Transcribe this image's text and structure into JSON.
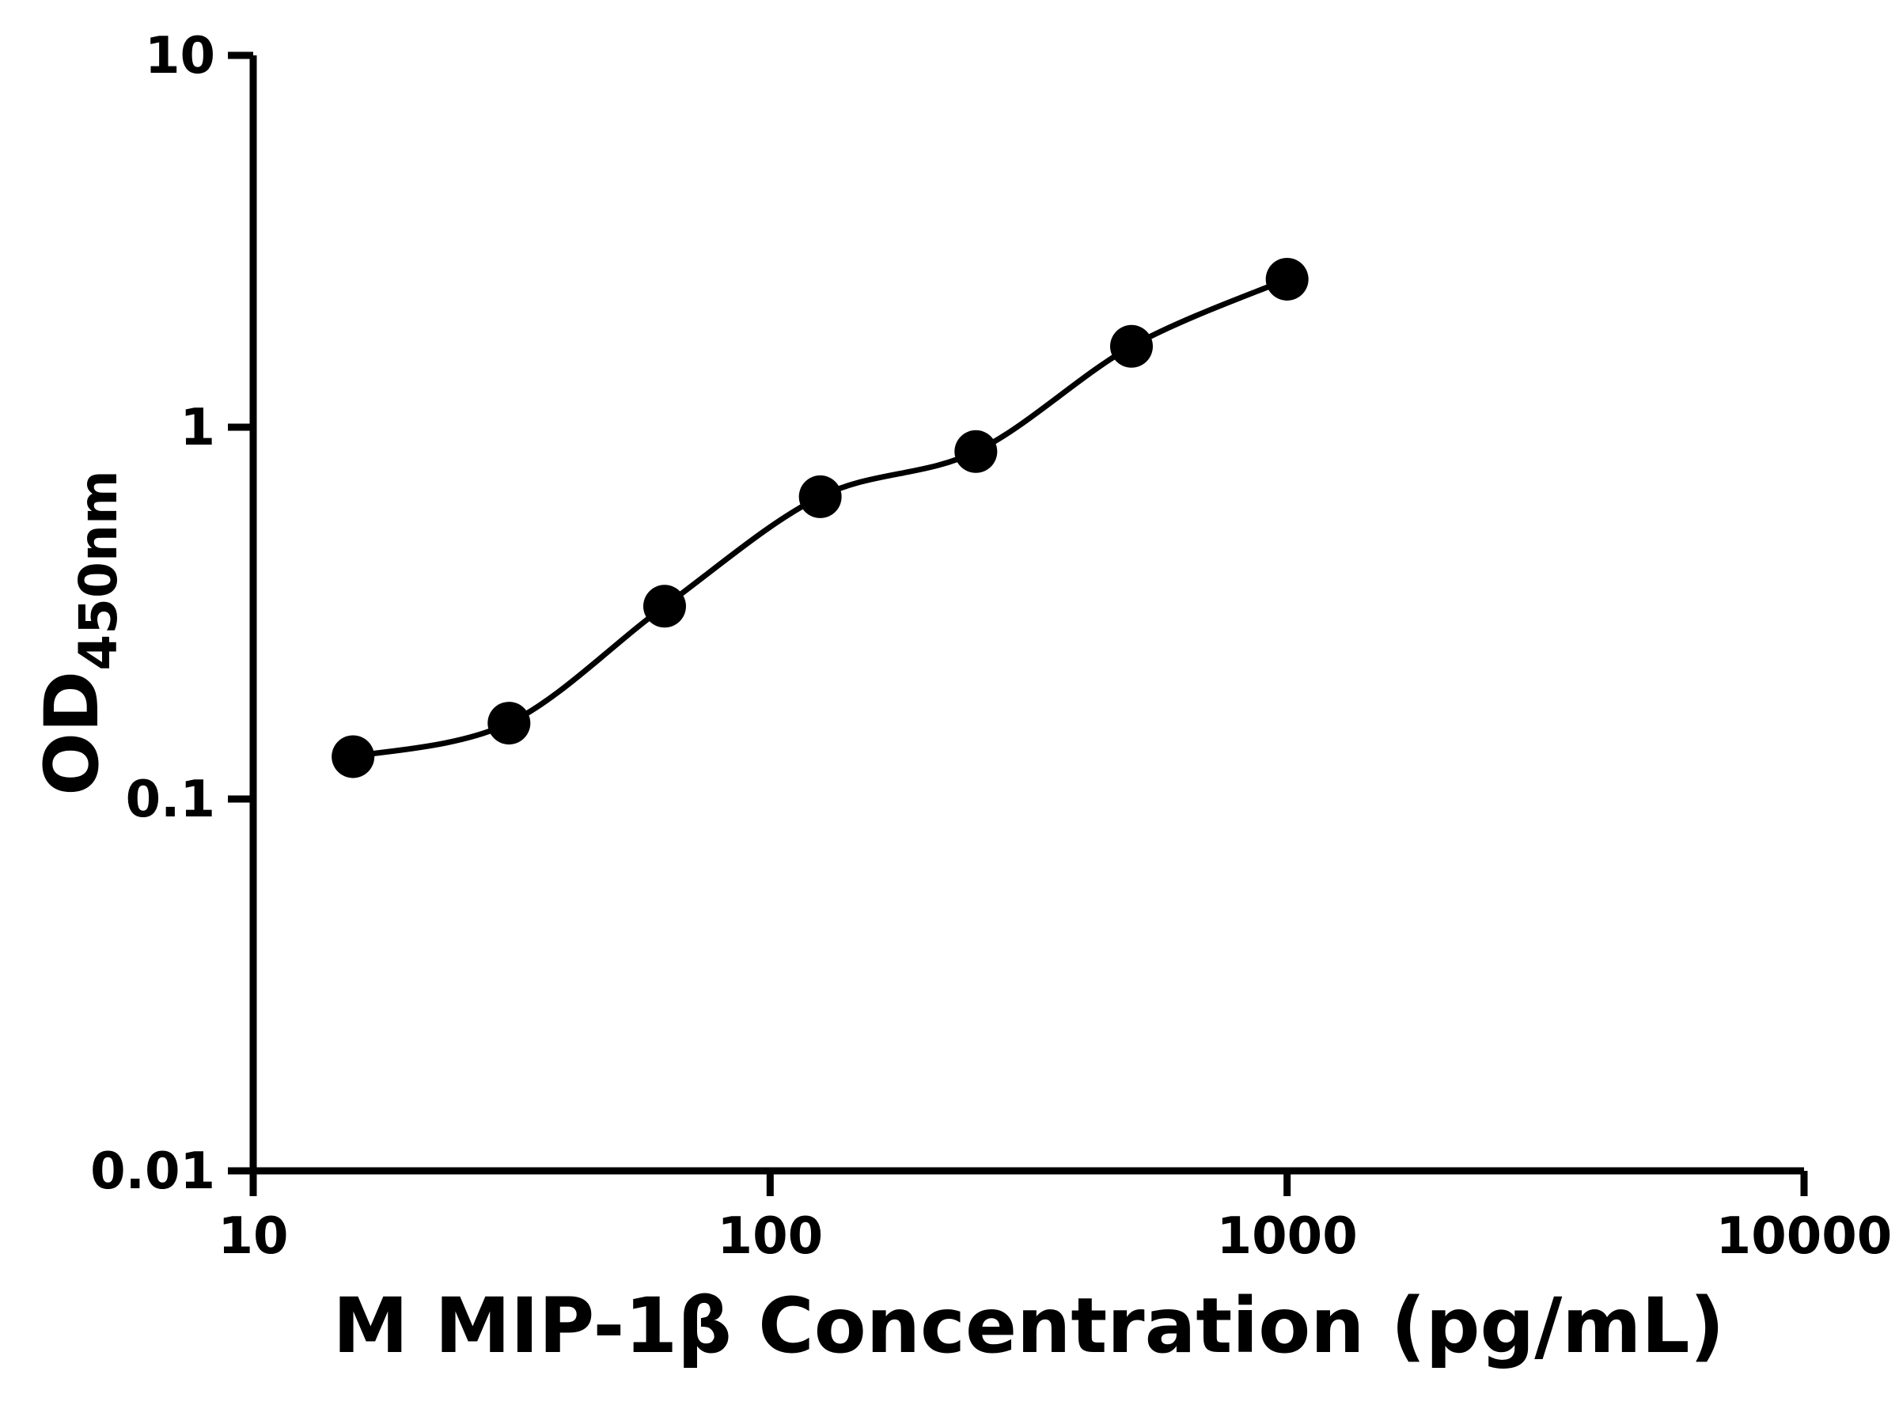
{
  "chart_data": {
    "type": "scatter",
    "title": "",
    "xlabel": "M MIP-1β Concentration (pg/mL)",
    "ylabel": "OD450nm",
    "ylabel_main": "OD",
    "ylabel_sub": "450nm",
    "x_scale": "log10",
    "y_scale": "log10",
    "xlim": [
      10,
      10000
    ],
    "ylim": [
      0.01,
      10
    ],
    "x_ticks": [
      {
        "value": 10,
        "label": "10"
      },
      {
        "value": 100,
        "label": "100"
      },
      {
        "value": 1000,
        "label": "1000"
      },
      {
        "value": 10000,
        "label": "10000"
      }
    ],
    "y_ticks": [
      {
        "value": 10,
        "label": "10"
      },
      {
        "value": 1,
        "label": "1"
      },
      {
        "value": 0.1,
        "label": "0.1"
      },
      {
        "value": 0.01,
        "label": "0.01"
      }
    ],
    "grid": false,
    "legend": "none",
    "marker_color": "#000000",
    "line_color": "#000000",
    "axis_color": "#000000",
    "background_color": "#ffffff",
    "series": [
      {
        "x": [
          15.6,
          31.25,
          62.5,
          125,
          250,
          500,
          1000
        ],
        "y": [
          0.13,
          0.16,
          0.33,
          0.65,
          0.86,
          1.65,
          2.5
        ]
      }
    ]
  }
}
